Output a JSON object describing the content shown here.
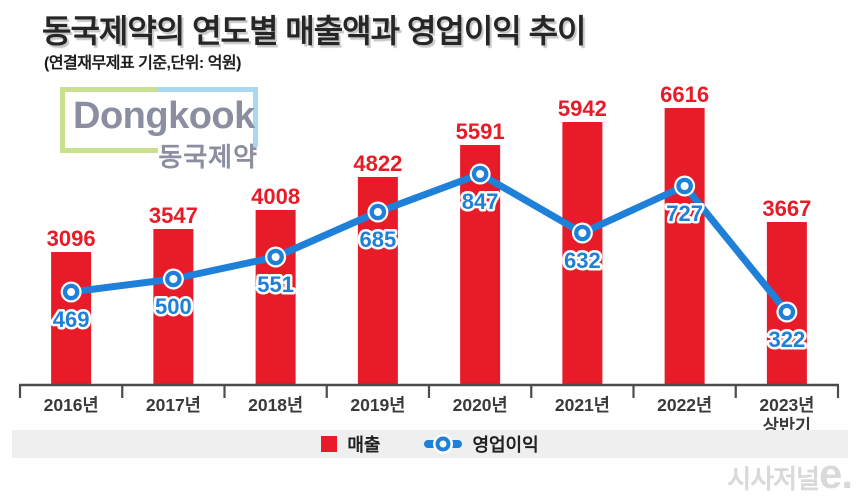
{
  "header": {
    "title": "동국제약의 연도별 매출액과 영업이익 추이",
    "subtitle": "(연결재무제표 기준,단위: 억원)"
  },
  "logo": {
    "name_en": "Dongkook",
    "name_ko": "동국제약"
  },
  "chart_data": {
    "type": "bar+line",
    "title": "동국제약의 연도별 매출액과 영업이익 추이",
    "unit_note": "(연결재무제표 기준,단위: 억원)",
    "categories": [
      "2016년",
      "2017년",
      "2018년",
      "2019년",
      "2020년",
      "2021년",
      "2022년",
      "2023년\n상반기"
    ],
    "series": [
      {
        "name": "매출",
        "type": "bar",
        "color": "#e71c28",
        "values": [
          3096,
          3547,
          4008,
          4822,
          5591,
          5942,
          6616,
          3667
        ]
      },
      {
        "name": "영업이익",
        "type": "line",
        "color": "#1e80d8",
        "values": [
          469,
          500,
          551,
          685,
          847,
          632,
          727,
          322
        ]
      }
    ],
    "ylim": [
      0,
      7000
    ],
    "grid": false,
    "legend_position": "bottom",
    "value_labels": "shown"
  },
  "watermark": {
    "main": "시사저널",
    "suffix": "e."
  },
  "colors": {
    "bar_red": "#e71c28",
    "line_blue": "#1e80d8",
    "logo_green": "#c9e18e",
    "logo_blue": "#a9d9f2",
    "logo_text_gray": "#8a8ea0",
    "axis_gray": "#4c4c4c",
    "legend_band_gray": "#efefef",
    "watermark_gray": "#d9d9d9"
  }
}
